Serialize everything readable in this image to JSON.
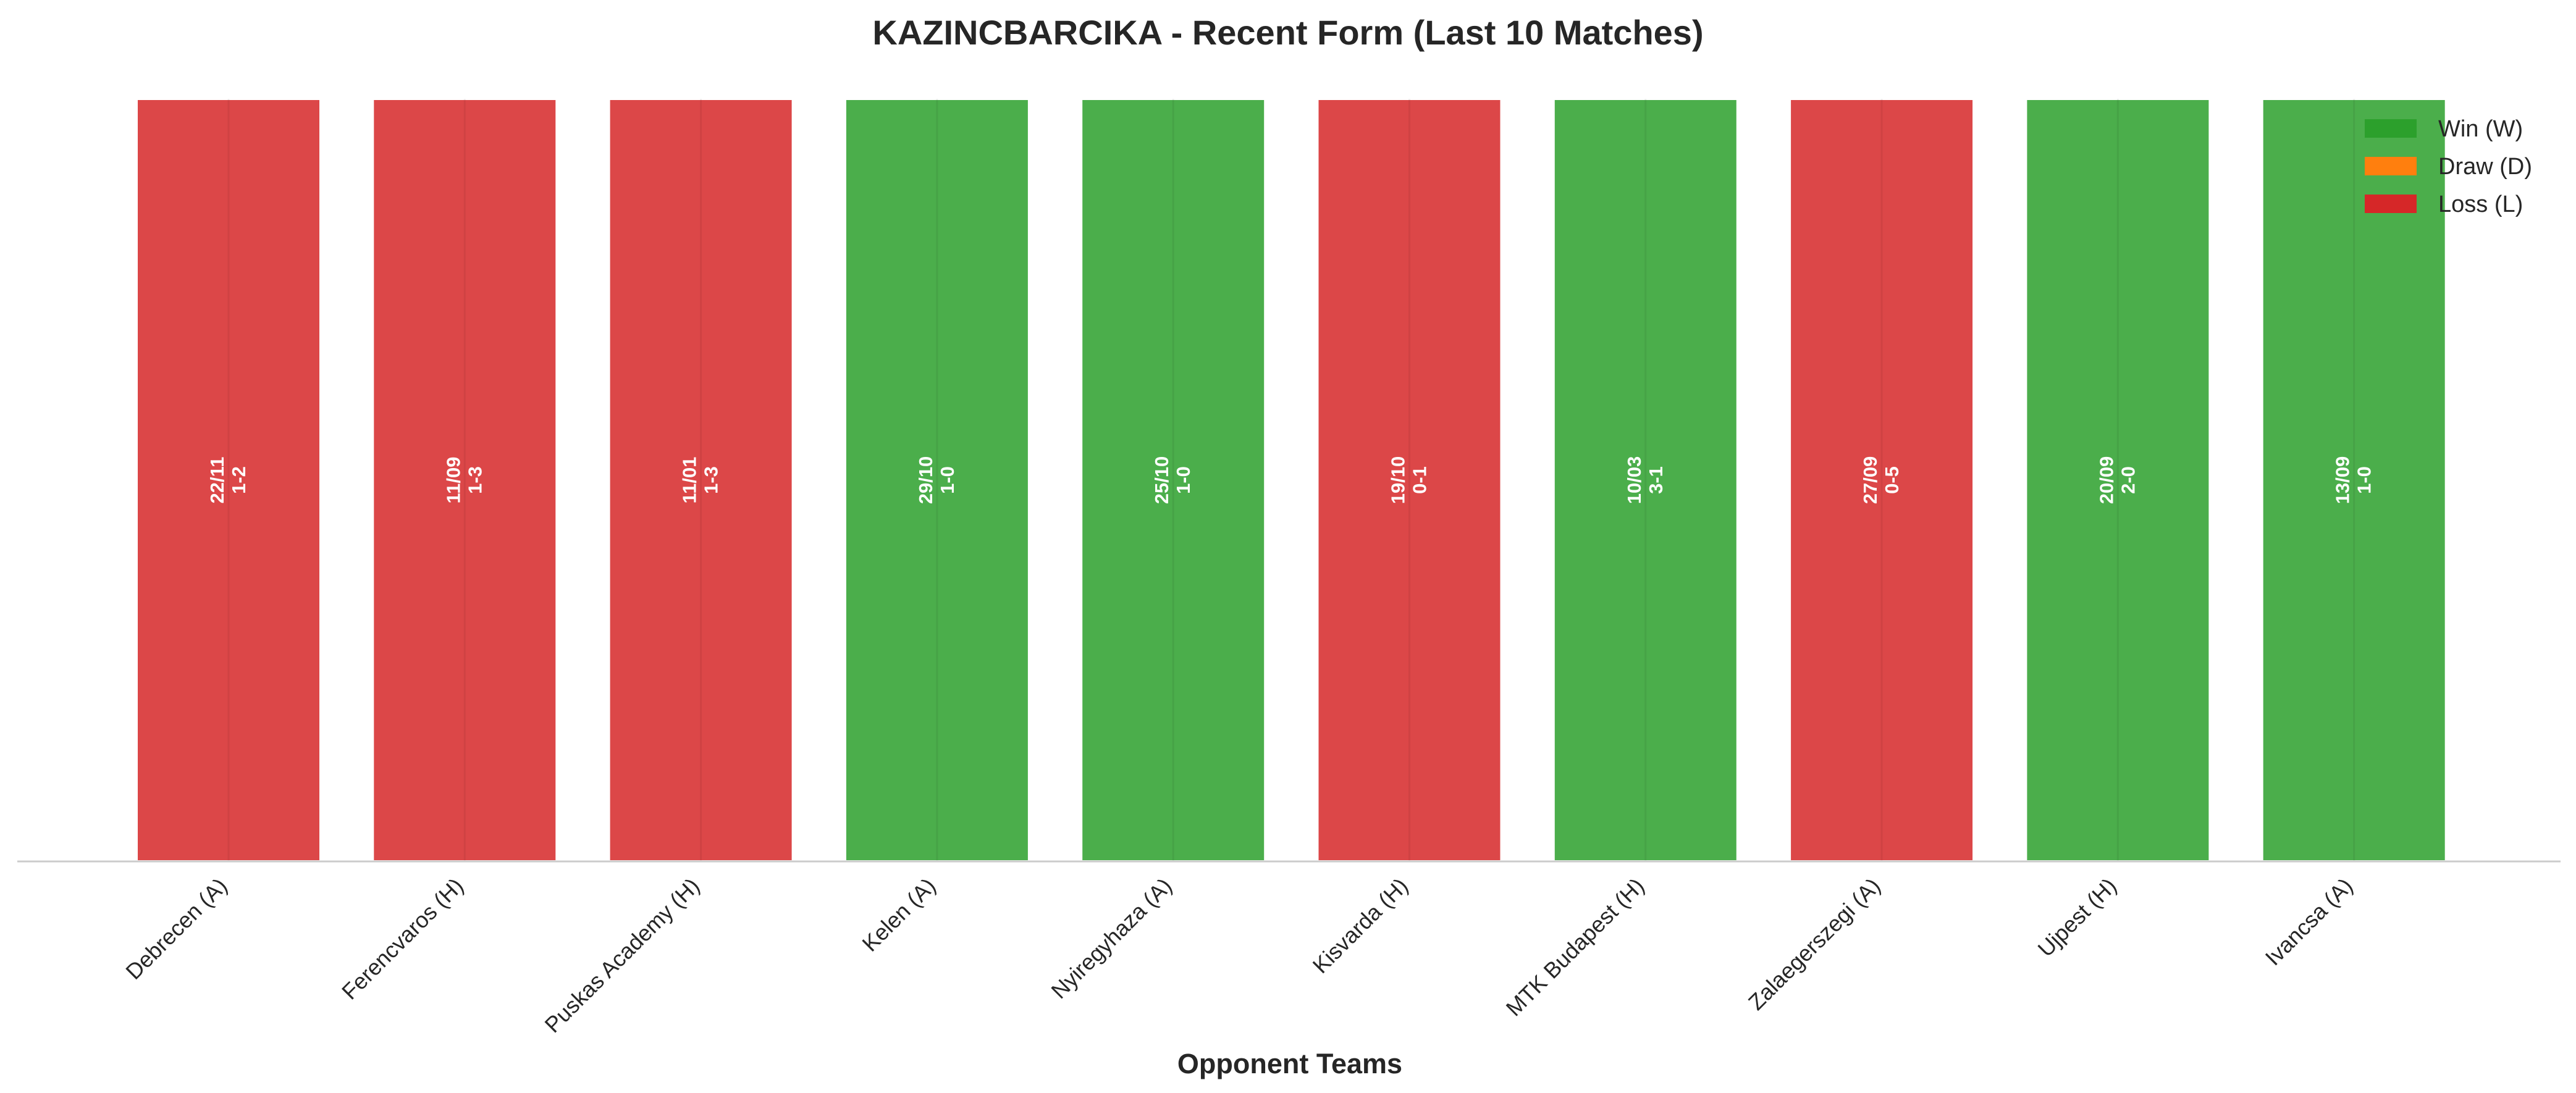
{
  "chart_data": {
    "type": "bar",
    "title": "KAZINCBARCIKA - Recent Form (Last 10 Matches)",
    "xlabel": "Opponent Teams",
    "ylabel": "",
    "grid": false,
    "legend_position": "top-right",
    "legend": [
      {
        "key": "W",
        "label": "Win (W)",
        "color": "#2ca02c"
      },
      {
        "key": "D",
        "label": "Draw (D)",
        "color": "#ff7f0e"
      },
      {
        "key": "L",
        "label": "Loss (L)",
        "color": "#d62728"
      }
    ],
    "categories": [
      "Debrecen (A)",
      "Ferencvaros (H)",
      "Puskas Academy (H)",
      "Kelen (A)",
      "Nyiregyhaza (A)",
      "Kisvarda (H)",
      "MTK Budapest (H)",
      "Zalaegerszegi (A)",
      "Ujpest (H)",
      "Ivancsa (A)"
    ],
    "values": [
      1,
      1,
      1,
      1,
      1,
      1,
      1,
      1,
      1,
      1
    ],
    "results": [
      "L",
      "L",
      "L",
      "W",
      "W",
      "L",
      "W",
      "L",
      "W",
      "W"
    ],
    "dates": [
      "22/11",
      "11/09",
      "11/01",
      "29/10",
      "25/10",
      "19/10",
      "10/03",
      "27/09",
      "20/09",
      "13/09"
    ],
    "scores": [
      "1-2",
      "1-3",
      "1-3",
      "1-0",
      "1-0",
      "0-1",
      "3-1",
      "0-5",
      "2-0",
      "1-0"
    ]
  }
}
